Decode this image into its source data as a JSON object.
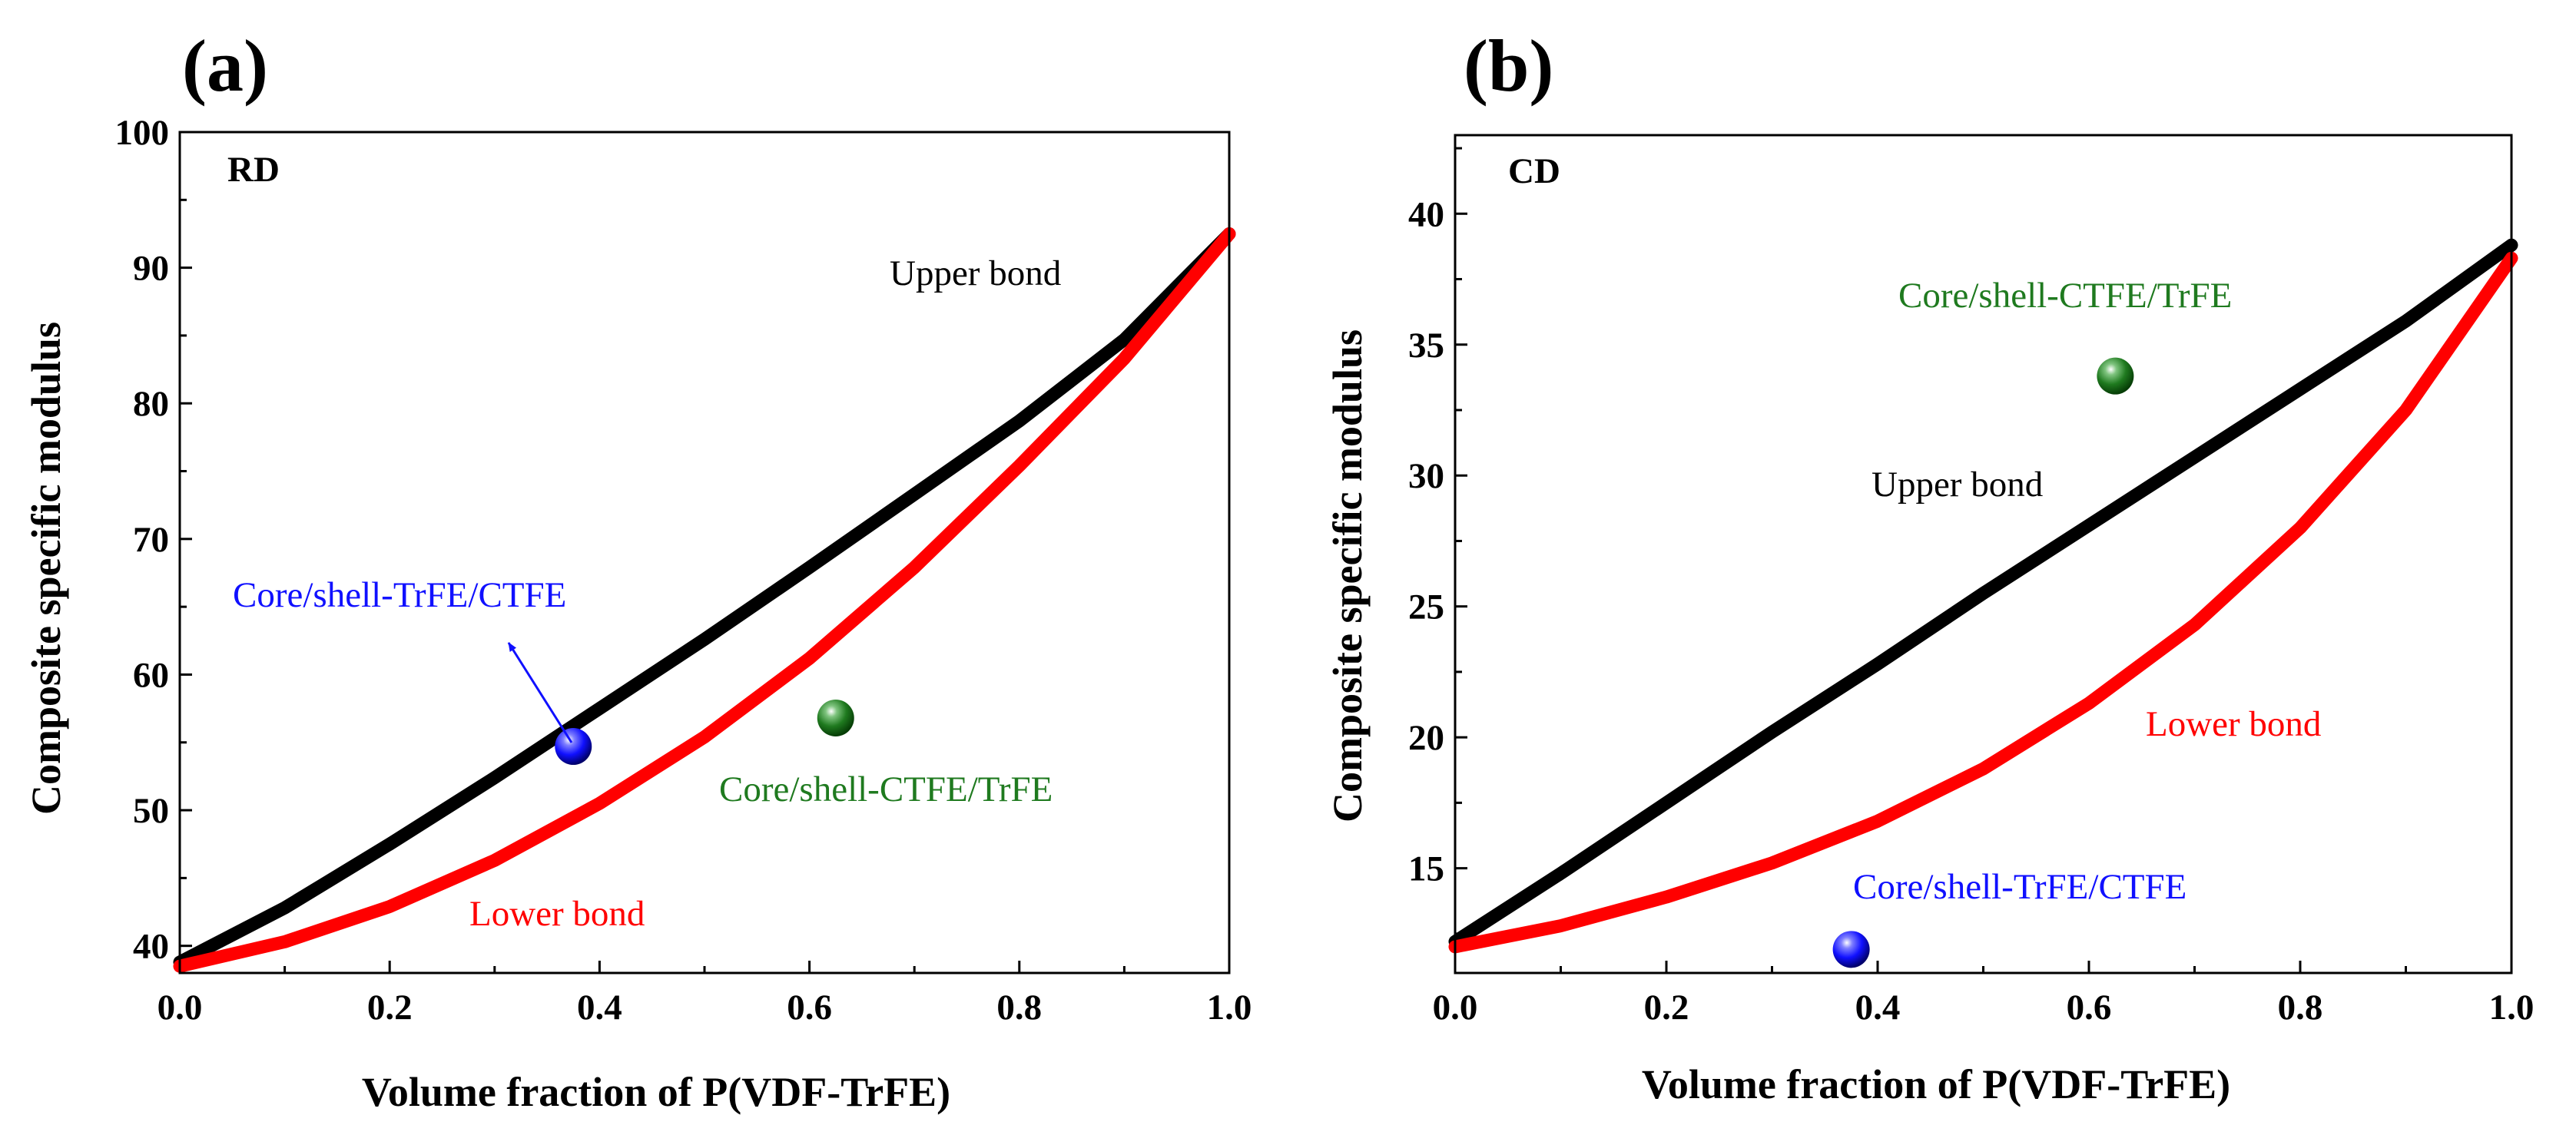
{
  "chart_data": [
    {
      "type": "line",
      "panel_label": "(a)",
      "tag": "RD",
      "xlabel": "Volume fraction of P(VDF-TrFE)",
      "ylabel": "Composite specific modulus",
      "xlim": [
        0,
        1
      ],
      "ylim": [
        38,
        100
      ],
      "xticks": [
        0.0,
        0.2,
        0.4,
        0.6,
        0.8,
        1.0
      ],
      "xtick_labels": [
        "0.0",
        "0.2",
        "0.4",
        "0.6",
        "0.8",
        "1.0"
      ],
      "yticks": [
        40,
        50,
        60,
        70,
        80,
        90,
        100
      ],
      "ytick_labels": [
        "40",
        "50",
        "60",
        "70",
        "80",
        "90",
        "100"
      ],
      "grid": false,
      "series": [
        {
          "name": "Upper bond",
          "color": "#000000",
          "x": [
            0.0,
            0.1,
            0.2,
            0.3,
            0.4,
            0.5,
            0.6,
            0.7,
            0.8,
            0.9,
            1.0
          ],
          "y": [
            38.8,
            42.8,
            47.5,
            52.4,
            57.5,
            62.6,
            67.9,
            73.3,
            78.7,
            84.7,
            92.5
          ]
        },
        {
          "name": "Lower bond",
          "color": "#ff0000",
          "x": [
            0.0,
            0.1,
            0.2,
            0.3,
            0.4,
            0.5,
            0.6,
            0.7,
            0.8,
            0.9,
            1.0
          ],
          "y": [
            38.5,
            40.3,
            42.9,
            46.3,
            50.5,
            55.4,
            61.2,
            67.9,
            75.4,
            83.3,
            92.5
          ]
        }
      ],
      "points": [
        {
          "name": "Core/shell-TrFE/CTFE",
          "x": 0.375,
          "y": 54.7,
          "color": "#1010ff"
        },
        {
          "name": "Core/shell-CTFE/TrFE",
          "x": 0.625,
          "y": 56.8,
          "color": "#1f7a1f"
        }
      ]
    },
    {
      "type": "line",
      "panel_label": "(b)",
      "tag": "CD",
      "xlabel": "Volume fraction of P(VDF-TrFE)",
      "ylabel": "Composite specific modulus",
      "xlim": [
        0,
        1
      ],
      "ylim": [
        11,
        43
      ],
      "xticks": [
        0.0,
        0.2,
        0.4,
        0.6,
        0.8,
        1.0
      ],
      "xtick_labels": [
        "0.0",
        "0.2",
        "0.4",
        "0.6",
        "0.8",
        "1.0"
      ],
      "yticks": [
        15,
        20,
        25,
        30,
        35,
        40
      ],
      "ytick_labels": [
        "15",
        "20",
        "25",
        "30",
        "35",
        "40"
      ],
      "grid": false,
      "series": [
        {
          "name": "Upper bond",
          "color": "#000000",
          "x": [
            0.0,
            0.1,
            0.2,
            0.3,
            0.4,
            0.5,
            0.6,
            0.7,
            0.8,
            0.9,
            1.0
          ],
          "y": [
            12.2,
            14.8,
            17.5,
            20.2,
            22.8,
            25.5,
            28.1,
            30.7,
            33.3,
            35.9,
            38.8
          ]
        },
        {
          "name": "Lower bond",
          "color": "#ff0000",
          "x": [
            0.0,
            0.1,
            0.2,
            0.3,
            0.4,
            0.5,
            0.6,
            0.7,
            0.8,
            0.9,
            1.0
          ],
          "y": [
            12.0,
            12.8,
            13.9,
            15.2,
            16.8,
            18.8,
            21.3,
            24.3,
            28.0,
            32.5,
            38.3
          ]
        }
      ],
      "points": [
        {
          "name": "Core/shell-TrFE/CTFE",
          "x": 0.375,
          "y": 11.9,
          "color": "#1010ff"
        },
        {
          "name": "Core/shell-CTFE/TrFE",
          "x": 0.625,
          "y": 33.8,
          "color": "#1f7a1f"
        }
      ]
    }
  ],
  "annotations": [
    [
      {
        "text": "Upper bond",
        "color": "#000000"
      },
      {
        "text": "Lower bond",
        "color": "#ff0000"
      },
      {
        "text": "Core/shell-TrFE/CTFE",
        "color": "#1010ff"
      },
      {
        "text": "Core/shell-CTFE/TrFE",
        "color": "#1f7a1f"
      }
    ],
    [
      {
        "text": "Upper bond",
        "color": "#000000"
      },
      {
        "text": "Lower bond",
        "color": "#ff0000"
      },
      {
        "text": "Core/shell-TrFE/CTFE",
        "color": "#1010ff"
      },
      {
        "text": "Core/shell-CTFE/TrFE",
        "color": "#1f7a1f"
      }
    ]
  ]
}
